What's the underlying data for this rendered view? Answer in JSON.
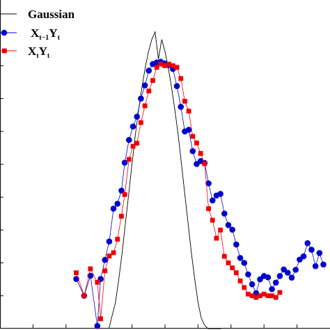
{
  "chart_data": {
    "type": "line",
    "title": "",
    "xlabel": "",
    "ylabel": "",
    "xlim": [
      0,
      100
    ],
    "ylim": [
      0,
      100
    ],
    "grid": false,
    "legend_position": "top-left",
    "series": [
      {
        "name": "Gaussian",
        "legend": {
          "main": "Gaussian",
          "parts": []
        },
        "color": "#000000",
        "marker": "none",
        "x": [
          33.0,
          35.0,
          36.0,
          37.0,
          38.0,
          39.0,
          40.0,
          41.0,
          42.0,
          43.0,
          44.0,
          45.0,
          46.0,
          47.0,
          48.0,
          49.0,
          50.0,
          51.0,
          52.0,
          53.0,
          54.0,
          55.0,
          56.0,
          57.0,
          58.0,
          59.0,
          60.0,
          61.0,
          62.0,
          63.0,
          64.0,
          65.0,
          66.0,
          67.0
        ],
        "y": [
          0.0,
          8.0,
          15.0,
          23.0,
          32.0,
          41.0,
          50.0,
          58.8,
          66.5,
          73.3,
          79.4,
          84.3,
          88.0,
          90.3,
          82.0,
          88.0,
          84.3,
          79.4,
          73.3,
          66.5,
          58.8,
          50.0,
          41.0,
          32.0,
          23.0,
          15.0,
          8.0,
          3.2,
          1.0,
          0.0,
          0.0,
          0.0,
          0.0,
          0.0
        ]
      },
      {
        "name": "Xt-1Yt",
        "legend": {
          "main": "X",
          "parts": [
            {
              "text": "t−1",
              "sub": true
            },
            {
              "text": "Y",
              "sub": false
            },
            {
              "text": "t",
              "sub": true
            }
          ]
        },
        "color": "#0000cc",
        "marker": "circle",
        "x": [
          23.1,
          25.5,
          27.4,
          29.5,
          30.5,
          31.8,
          33.1,
          34.4,
          35.6,
          36.8,
          37.8,
          39.1,
          40.3,
          41.5,
          42.7,
          43.9,
          45.1,
          46.3,
          47.5,
          48.7,
          49.9,
          51.2,
          52.4,
          53.6,
          54.8,
          56.0,
          57.2,
          58.4,
          59.6,
          60.8,
          62.0,
          63.2,
          64.4,
          65.6,
          66.8,
          68.0,
          69.2,
          70.4,
          71.6,
          72.8,
          74.0,
          75.2,
          76.4,
          77.6,
          78.8,
          80.0,
          81.2,
          82.4,
          83.6,
          84.8,
          86.0,
          87.2,
          88.4,
          89.6,
          90.8,
          92.0,
          93.2,
          94.4,
          95.6,
          96.8,
          98.0
        ],
        "y": [
          15.1,
          10.0,
          16.1,
          0.8,
          15.1,
          20.9,
          26.5,
          36.5,
          38.0,
          42.0,
          50.5,
          57.4,
          61.5,
          64.5,
          70.0,
          74.0,
          78.5,
          80.5,
          81.0,
          81.2,
          80.7,
          80.2,
          79.0,
          73.8,
          67.5,
          60.0,
          60.5,
          54.0,
          50.1,
          51.0,
          50.4,
          44.2,
          39.0,
          40.5,
          41.0,
          35.0,
          31.5,
          30.1,
          25.6,
          21.5,
          20.0,
          16.5,
          13.5,
          10.8,
          15.0,
          16.0,
          15.6,
          12.0,
          14.0,
          16.0,
          18.0,
          17.0,
          15.5,
          17.9,
          21.0,
          22.0,
          26.0,
          24.0,
          19.0,
          23.0,
          19.5
        ]
      },
      {
        "name": "XtYt",
        "legend": {
          "main": "X",
          "parts": [
            {
              "text": "t",
              "sub": true
            },
            {
              "text": "Y",
              "sub": false
            },
            {
              "text": "t",
              "sub": true
            }
          ]
        },
        "color": "#ee0000",
        "marker": "square",
        "x": [
          23.1,
          25.5,
          27.4,
          29.5,
          30.5,
          31.8,
          33.1,
          34.4,
          35.6,
          36.8,
          37.8,
          39.1,
          40.3,
          41.5,
          42.7,
          43.9,
          45.1,
          46.3,
          47.5,
          48.7,
          49.9,
          51.2,
          52.4,
          53.6,
          54.8,
          56.0,
          57.2,
          58.4,
          59.6,
          60.8,
          62.0,
          63.2,
          64.4,
          65.6,
          66.8,
          68.0,
          69.2,
          70.4,
          71.6,
          72.8,
          74.0,
          75.2,
          76.4,
          77.6,
          78.8,
          80.0,
          81.2,
          82.4,
          83.6,
          84.8
        ],
        "y": [
          17.0,
          10.0,
          18.2,
          14.1,
          3.0,
          17.6,
          22.1,
          23.1,
          27.2,
          34.2,
          40.8,
          51.5,
          55.5,
          56.4,
          62.7,
          67.8,
          72.3,
          75.5,
          79.5,
          80.5,
          80.0,
          80.5,
          80.0,
          79.5,
          76.1,
          69.2,
          66.2,
          58.5,
          56.5,
          53.3,
          50.2,
          36.5,
          33.0,
          27.5,
          30.0,
          22.0,
          20.0,
          18.5,
          17.0,
          14.5,
          12.5,
          10.5,
          10.0,
          9.5,
          10.0,
          10.5,
          10.0,
          10.0,
          9.5,
          11.0
        ]
      }
    ]
  }
}
